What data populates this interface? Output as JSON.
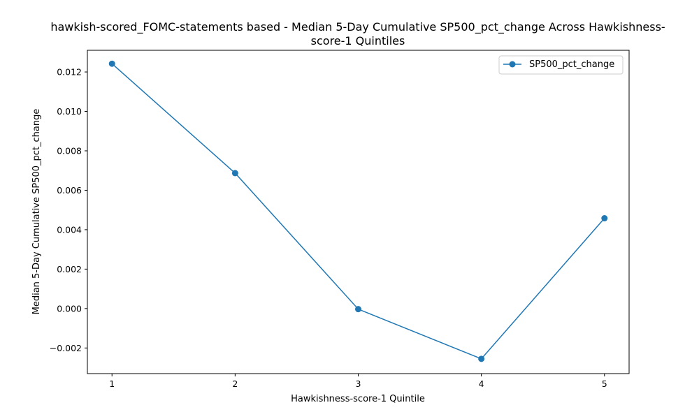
{
  "chart_data": {
    "type": "line",
    "title_lines": [
      "hawkish-scored_FOMC-statements based - Median 5-Day Cumulative SP500_pct_change Across Hawkishness-",
      "score-1 Quintiles"
    ],
    "xlabel": "Hawkishness-score-1 Quintile",
    "ylabel": "Median 5-Day Cumulative SP500_pct_change",
    "x": [
      1,
      2,
      3,
      4,
      5
    ],
    "x_tick_labels": [
      "1",
      "2",
      "3",
      "4",
      "5"
    ],
    "xlim": [
      0.8,
      5.2
    ],
    "y_ticks": [
      -0.002,
      0.0,
      0.002,
      0.004,
      0.006,
      0.008,
      0.01,
      0.012
    ],
    "y_tick_labels": [
      "−0.002",
      "0.000",
      "0.002",
      "0.004",
      "0.006",
      "0.008",
      "0.010",
      "0.012"
    ],
    "ylim": [
      -0.0033,
      0.0131
    ],
    "series": [
      {
        "name": "SP500_pct_change",
        "color": "#1f77b4",
        "marker": "circle",
        "values": [
          0.01242,
          0.00687,
          -3e-05,
          -0.00255,
          0.00458
        ]
      }
    ],
    "legend": {
      "position": "top-right",
      "entries": [
        "SP500_pct_change"
      ]
    },
    "grid": false
  }
}
